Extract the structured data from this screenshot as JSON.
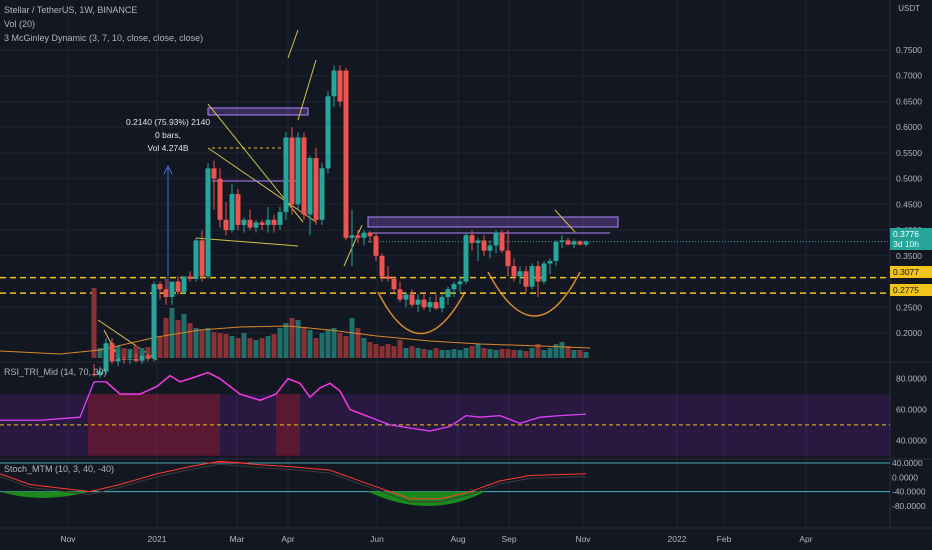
{
  "header": {
    "symbol_line": "Stellar / TetherUS, 1W, BINANCE",
    "vol_line": "Vol (20)",
    "mcginley_line": "3 McGinley Dynamic (3, 7, 10, close, close, close)",
    "currency": "USDT"
  },
  "measure": {
    "line1": "0.2140 (75.93%) 2140",
    "line2": "0 bars,",
    "line3": "Vol 4.274B"
  },
  "price_axis": {
    "ticks": [
      "0.7500",
      "0.7000",
      "0.6500",
      "0.6000",
      "0.5500",
      "0.5000",
      "0.4500",
      "0.4000",
      "0.3500",
      "0.2500",
      "0.2000"
    ],
    "label_last": "0.3776",
    "label_countdown": "3d 10h",
    "label_3077": "0.3077",
    "label_2775": "0.2775"
  },
  "rsi": {
    "title": "RSI_TRI_Mid (14, 70, 30)",
    "ticks": [
      "80.0000",
      "60.0000",
      "40.0000"
    ]
  },
  "stoch": {
    "title": "Stoch_MTM (10, 3, 40, -40)",
    "ticks": [
      "40.0000",
      "0.0000",
      "-40.0000",
      "-80.0000"
    ]
  },
  "time_axis": {
    "labels": [
      "Nov",
      "2021",
      "Mar",
      "Apr",
      "Jun",
      "Aug",
      "Sep",
      "Nov",
      "2022",
      "Feb",
      "Apr"
    ]
  },
  "colors": {
    "bg": "#131722",
    "up": "#26a69a",
    "down": "#ef5350",
    "dashed_yellow": "#f0c419",
    "rsi_line": "#e040fb",
    "stoch_red": "#ff3b30",
    "stoch_green": "#1b8a1b",
    "zone_purple": "#7e57c2",
    "cup": "#d8892b"
  },
  "chart_data": {
    "type": "candlestick",
    "timeframe": "1W",
    "ylim": [
      0.15,
      0.78
    ],
    "candles": [
      {
        "x": 94,
        "o": 0.12,
        "h": 0.139,
        "l": 0.115,
        "c": 0.118
      },
      {
        "x": 100,
        "o": 0.118,
        "h": 0.135,
        "l": 0.113,
        "c": 0.125
      },
      {
        "x": 106,
        "o": 0.125,
        "h": 0.19,
        "l": 0.12,
        "c": 0.18
      },
      {
        "x": 112,
        "o": 0.18,
        "h": 0.19,
        "l": 0.14,
        "c": 0.145
      },
      {
        "x": 118,
        "o": 0.145,
        "h": 0.16,
        "l": 0.135,
        "c": 0.15
      },
      {
        "x": 124,
        "o": 0.15,
        "h": 0.155,
        "l": 0.14,
        "c": 0.148
      },
      {
        "x": 130,
        "o": 0.148,
        "h": 0.165,
        "l": 0.14,
        "c": 0.15
      },
      {
        "x": 136,
        "o": 0.15,
        "h": 0.16,
        "l": 0.143,
        "c": 0.146
      },
      {
        "x": 142,
        "o": 0.146,
        "h": 0.16,
        "l": 0.14,
        "c": 0.156
      },
      {
        "x": 148,
        "o": 0.156,
        "h": 0.16,
        "l": 0.145,
        "c": 0.15
      },
      {
        "x": 154,
        "o": 0.15,
        "h": 0.3,
        "l": 0.145,
        "c": 0.295
      },
      {
        "x": 160,
        "o": 0.295,
        "h": 0.3,
        "l": 0.265,
        "c": 0.285
      },
      {
        "x": 166,
        "o": 0.285,
        "h": 0.305,
        "l": 0.255,
        "c": 0.27
      },
      {
        "x": 172,
        "o": 0.27,
        "h": 0.3,
        "l": 0.255,
        "c": 0.3
      },
      {
        "x": 178,
        "o": 0.3,
        "h": 0.31,
        "l": 0.275,
        "c": 0.28
      },
      {
        "x": 184,
        "o": 0.28,
        "h": 0.31,
        "l": 0.275,
        "c": 0.31
      },
      {
        "x": 190,
        "o": 0.31,
        "h": 0.32,
        "l": 0.3,
        "c": 0.305
      },
      {
        "x": 196,
        "o": 0.305,
        "h": 0.385,
        "l": 0.3,
        "c": 0.38
      },
      {
        "x": 202,
        "o": 0.38,
        "h": 0.4,
        "l": 0.3,
        "c": 0.31
      },
      {
        "x": 208,
        "o": 0.31,
        "h": 0.53,
        "l": 0.305,
        "c": 0.52
      },
      {
        "x": 214,
        "o": 0.52,
        "h": 0.535,
        "l": 0.44,
        "c": 0.5
      },
      {
        "x": 220,
        "o": 0.5,
        "h": 0.52,
        "l": 0.405,
        "c": 0.42
      },
      {
        "x": 226,
        "o": 0.42,
        "h": 0.455,
        "l": 0.39,
        "c": 0.4
      },
      {
        "x": 232,
        "o": 0.4,
        "h": 0.49,
        "l": 0.395,
        "c": 0.47
      },
      {
        "x": 238,
        "o": 0.47,
        "h": 0.48,
        "l": 0.4,
        "c": 0.41
      },
      {
        "x": 244,
        "o": 0.41,
        "h": 0.425,
        "l": 0.395,
        "c": 0.42
      },
      {
        "x": 250,
        "o": 0.42,
        "h": 0.44,
        "l": 0.4,
        "c": 0.405
      },
      {
        "x": 256,
        "o": 0.405,
        "h": 0.42,
        "l": 0.395,
        "c": 0.415
      },
      {
        "x": 262,
        "o": 0.415,
        "h": 0.42,
        "l": 0.4,
        "c": 0.41
      },
      {
        "x": 268,
        "o": 0.41,
        "h": 0.445,
        "l": 0.395,
        "c": 0.42
      },
      {
        "x": 274,
        "o": 0.42,
        "h": 0.43,
        "l": 0.395,
        "c": 0.41
      },
      {
        "x": 280,
        "o": 0.41,
        "h": 0.445,
        "l": 0.4,
        "c": 0.435
      },
      {
        "x": 286,
        "o": 0.435,
        "h": 0.59,
        "l": 0.42,
        "c": 0.58
      },
      {
        "x": 292,
        "o": 0.58,
        "h": 0.6,
        "l": 0.43,
        "c": 0.45
      },
      {
        "x": 298,
        "o": 0.45,
        "h": 0.59,
        "l": 0.44,
        "c": 0.58
      },
      {
        "x": 304,
        "o": 0.58,
        "h": 0.59,
        "l": 0.42,
        "c": 0.43
      },
      {
        "x": 310,
        "o": 0.43,
        "h": 0.545,
        "l": 0.39,
        "c": 0.54
      },
      {
        "x": 316,
        "o": 0.54,
        "h": 0.56,
        "l": 0.41,
        "c": 0.42
      },
      {
        "x": 322,
        "o": 0.42,
        "h": 0.53,
        "l": 0.41,
        "c": 0.52
      },
      {
        "x": 328,
        "o": 0.52,
        "h": 0.67,
        "l": 0.51,
        "c": 0.66
      },
      {
        "x": 334,
        "o": 0.66,
        "h": 0.72,
        "l": 0.64,
        "c": 0.71
      },
      {
        "x": 340,
        "o": 0.71,
        "h": 0.72,
        "l": 0.64,
        "c": 0.65
      },
      {
        "x": 346,
        "o": 0.71,
        "h": 0.715,
        "l": 0.38,
        "c": 0.385
      },
      {
        "x": 352,
        "o": 0.385,
        "h": 0.44,
        "l": 0.33,
        "c": 0.39
      },
      {
        "x": 358,
        "o": 0.39,
        "h": 0.4,
        "l": 0.375,
        "c": 0.385
      },
      {
        "x": 364,
        "o": 0.385,
        "h": 0.4,
        "l": 0.37,
        "c": 0.395
      },
      {
        "x": 370,
        "o": 0.395,
        "h": 0.398,
        "l": 0.375,
        "c": 0.388
      },
      {
        "x": 376,
        "o": 0.388,
        "h": 0.395,
        "l": 0.34,
        "c": 0.35
      },
      {
        "x": 382,
        "o": 0.35,
        "h": 0.355,
        "l": 0.3,
        "c": 0.31
      },
      {
        "x": 388,
        "o": 0.31,
        "h": 0.33,
        "l": 0.3,
        "c": 0.305
      },
      {
        "x": 394,
        "o": 0.305,
        "h": 0.31,
        "l": 0.28,
        "c": 0.285
      },
      {
        "x": 400,
        "o": 0.285,
        "h": 0.3,
        "l": 0.26,
        "c": 0.265
      },
      {
        "x": 406,
        "o": 0.265,
        "h": 0.28,
        "l": 0.25,
        "c": 0.275
      },
      {
        "x": 412,
        "o": 0.275,
        "h": 0.285,
        "l": 0.25,
        "c": 0.255
      },
      {
        "x": 418,
        "o": 0.255,
        "h": 0.275,
        "l": 0.24,
        "c": 0.265
      },
      {
        "x": 424,
        "o": 0.265,
        "h": 0.28,
        "l": 0.245,
        "c": 0.25
      },
      {
        "x": 430,
        "o": 0.25,
        "h": 0.27,
        "l": 0.24,
        "c": 0.26
      },
      {
        "x": 436,
        "o": 0.26,
        "h": 0.275,
        "l": 0.245,
        "c": 0.248
      },
      {
        "x": 442,
        "o": 0.248,
        "h": 0.275,
        "l": 0.24,
        "c": 0.27
      },
      {
        "x": 448,
        "o": 0.27,
        "h": 0.29,
        "l": 0.255,
        "c": 0.285
      },
      {
        "x": 454,
        "o": 0.285,
        "h": 0.3,
        "l": 0.27,
        "c": 0.295
      },
      {
        "x": 460,
        "o": 0.295,
        "h": 0.31,
        "l": 0.28,
        "c": 0.3
      },
      {
        "x": 466,
        "o": 0.3,
        "h": 0.395,
        "l": 0.295,
        "c": 0.39
      },
      {
        "x": 472,
        "o": 0.39,
        "h": 0.4,
        "l": 0.36,
        "c": 0.375
      },
      {
        "x": 478,
        "o": 0.375,
        "h": 0.385,
        "l": 0.34,
        "c": 0.38
      },
      {
        "x": 484,
        "o": 0.38,
        "h": 0.39,
        "l": 0.35,
        "c": 0.36
      },
      {
        "x": 490,
        "o": 0.36,
        "h": 0.38,
        "l": 0.345,
        "c": 0.37
      },
      {
        "x": 496,
        "o": 0.37,
        "h": 0.4,
        "l": 0.355,
        "c": 0.395
      },
      {
        "x": 502,
        "o": 0.395,
        "h": 0.4,
        "l": 0.355,
        "c": 0.36
      },
      {
        "x": 508,
        "o": 0.36,
        "h": 0.4,
        "l": 0.31,
        "c": 0.33
      },
      {
        "x": 514,
        "o": 0.33,
        "h": 0.345,
        "l": 0.3,
        "c": 0.31
      },
      {
        "x": 520,
        "o": 0.31,
        "h": 0.33,
        "l": 0.295,
        "c": 0.32
      },
      {
        "x": 526,
        "o": 0.32,
        "h": 0.33,
        "l": 0.28,
        "c": 0.29
      },
      {
        "x": 532,
        "o": 0.29,
        "h": 0.335,
        "l": 0.285,
        "c": 0.33
      },
      {
        "x": 538,
        "o": 0.33,
        "h": 0.34,
        "l": 0.27,
        "c": 0.3
      },
      {
        "x": 544,
        "o": 0.3,
        "h": 0.34,
        "l": 0.295,
        "c": 0.335
      },
      {
        "x": 550,
        "o": 0.335,
        "h": 0.345,
        "l": 0.315,
        "c": 0.34
      },
      {
        "x": 556,
        "o": 0.34,
        "h": 0.38,
        "l": 0.33,
        "c": 0.377
      },
      {
        "x": 562,
        "o": 0.377,
        "h": 0.39,
        "l": 0.365,
        "c": 0.38
      },
      {
        "x": 568,
        "o": 0.38,
        "h": 0.385,
        "l": 0.37,
        "c": 0.372
      },
      {
        "x": 574,
        "o": 0.372,
        "h": 0.382,
        "l": 0.365,
        "c": 0.378
      },
      {
        "x": 580,
        "o": 0.378,
        "h": 0.38,
        "l": 0.37,
        "c": 0.372
      },
      {
        "x": 586,
        "o": 0.372,
        "h": 0.38,
        "l": 0.368,
        "c": 0.3776
      }
    ],
    "horizontal_levels": [
      0.3077,
      0.2775
    ],
    "last_price": 0.3776
  }
}
